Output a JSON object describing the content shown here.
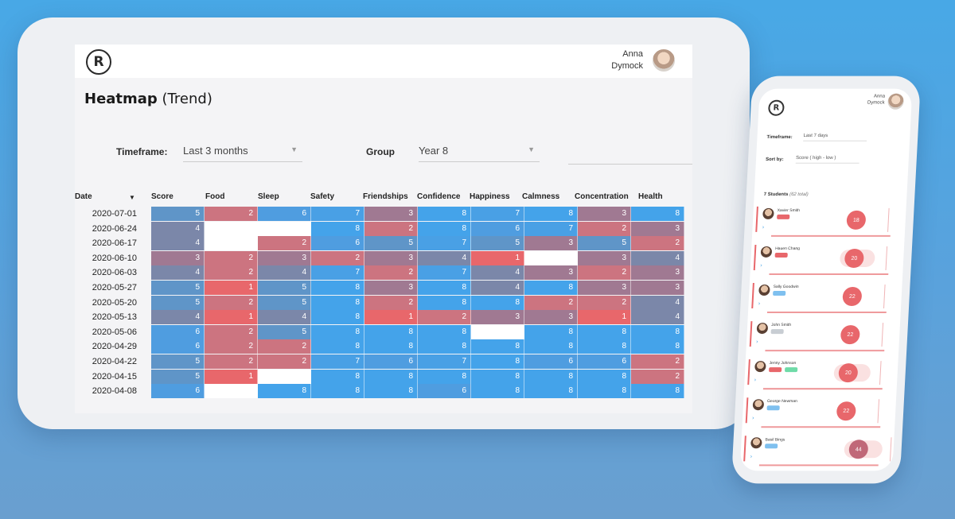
{
  "tablet": {
    "logo": "R",
    "user": {
      "first": "Anna",
      "last": "Dymock"
    },
    "title_bold": "Heatmap",
    "title_rest": " (Trend)",
    "filters": {
      "timeframe_label": "Timeframe:",
      "timeframe_value": "Last 3 months",
      "group_label": "Group",
      "group_value": "Year 8"
    },
    "columns": [
      "Date",
      "Score",
      "Food",
      "Sleep",
      "Safety",
      "Friendships",
      "Confidence",
      "Happiness",
      "Calmness",
      "Concentration",
      "Health"
    ],
    "rows": [
      {
        "date": "2020-07-01",
        "values": [
          5,
          2,
          6,
          7,
          3,
          8,
          7,
          8,
          3,
          8
        ]
      },
      {
        "date": "2020-06-24",
        "values": [
          4,
          null,
          0,
          8,
          2,
          8,
          6,
          7,
          2,
          3
        ]
      },
      {
        "date": "2020-06-17",
        "values": [
          4,
          0,
          2,
          6,
          5,
          7,
          5,
          3,
          5,
          2
        ]
      },
      {
        "date": "2020-06-10",
        "values": [
          3,
          2,
          3,
          2,
          3,
          4,
          1,
          0,
          3,
          4
        ]
      },
      {
        "date": "2020-06-03",
        "values": [
          4,
          2,
          4,
          7,
          2,
          7,
          4,
          3,
          2,
          3
        ]
      },
      {
        "date": "2020-05-27",
        "values": [
          5,
          1,
          5,
          8,
          3,
          8,
          4,
          8,
          3,
          3
        ]
      },
      {
        "date": "2020-05-20",
        "values": [
          5,
          2,
          5,
          8,
          2,
          8,
          8,
          2,
          2,
          4
        ]
      },
      {
        "date": "2020-05-13",
        "values": [
          4,
          1,
          4,
          8,
          1,
          2,
          3,
          3,
          1,
          4
        ]
      },
      {
        "date": "2020-05-06",
        "values": [
          6,
          2,
          5,
          8,
          8,
          8,
          null,
          8,
          8,
          8
        ]
      },
      {
        "date": "2020-04-29",
        "values": [
          6,
          2,
          2,
          8,
          8,
          8,
          8,
          8,
          8,
          8
        ]
      },
      {
        "date": "2020-04-22",
        "values": [
          5,
          2,
          2,
          7,
          6,
          7,
          8,
          6,
          6,
          2
        ]
      },
      {
        "date": "2020-04-15",
        "values": [
          5,
          1,
          0,
          8,
          8,
          8,
          8,
          8,
          8,
          2
        ]
      },
      {
        "date": "2020-04-08",
        "values": [
          6,
          0,
          8,
          8,
          8,
          6,
          8,
          8,
          8,
          8
        ]
      }
    ],
    "colors": {
      "low": "#e8676b",
      "high": "#44a3ea",
      "empty": "#ffffff"
    }
  },
  "phone": {
    "logo": "R",
    "user": {
      "first": "Anna",
      "last": "Dymock"
    },
    "timeframe_label": "Timeframe:",
    "timeframe_value": "Last 7 days",
    "sort_label": "Sort by:",
    "sort_value": "Score ( high - low )",
    "count_bold": "7 Students",
    "count_rest": " (62 total)",
    "students": [
      {
        "name": "Xavier Smith",
        "tag": "red",
        "score": "18"
      },
      {
        "name": "Hauen Chang",
        "tag": "red",
        "score": "20"
      },
      {
        "name": "Sally Goodwin",
        "tag": "blue",
        "score": "22"
      },
      {
        "name": "John Smith",
        "tag": "gray",
        "score": "22"
      },
      {
        "name": "Jenny Johnson",
        "tag": "red",
        "score": "20"
      },
      {
        "name": "George Newman",
        "tag": "blue",
        "score": "22"
      },
      {
        "name": "Basil Bings",
        "tag": "blue",
        "score": "44"
      }
    ]
  }
}
